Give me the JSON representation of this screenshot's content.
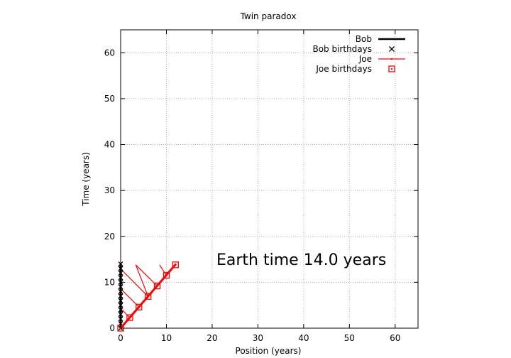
{
  "chart_data": {
    "type": "line",
    "title": "Twin paradox",
    "xlabel": "Position (years)",
    "ylabel": "Time (years)",
    "xlim": [
      0,
      65
    ],
    "ylim": [
      0,
      65
    ],
    "xticks": [
      0,
      10,
      20,
      30,
      40,
      50,
      60
    ],
    "yticks": [
      0,
      10,
      20,
      30,
      40,
      50,
      60
    ],
    "grid": true,
    "legend_position": "top-right",
    "annotation": "Earth time 14.0 years",
    "series": [
      {
        "name": "Bob",
        "color": "#000000",
        "style": "thick-line",
        "x": [
          0,
          0
        ],
        "y": [
          0,
          14
        ]
      },
      {
        "name": "Bob birthdays",
        "color": "#000000",
        "style": "cross-markers",
        "x": [
          0,
          0,
          0,
          0,
          0,
          0,
          0,
          0,
          0,
          0,
          0,
          0,
          0,
          0,
          0
        ],
        "y": [
          0,
          1,
          2,
          3,
          4,
          5,
          6,
          7,
          8,
          9,
          10,
          11,
          12,
          13,
          14
        ]
      },
      {
        "name": "Joe",
        "color": "#ff0000",
        "style": "thick-line",
        "x": [
          0,
          12.1
        ],
        "y": [
          0,
          14
        ]
      },
      {
        "name": "Joe birthdays",
        "color": "#ff0000",
        "style": "square-markers",
        "x": [
          0,
          2,
          4,
          6,
          8,
          10,
          12
        ],
        "y": [
          0,
          2.3,
          4.6,
          6.9,
          9.2,
          11.5,
          13.8
        ]
      }
    ],
    "joe_light_lines": [
      {
        "x": [
          2,
          0
        ],
        "y": [
          2.3,
          4.3
        ]
      },
      {
        "x": [
          4,
          0
        ],
        "y": [
          4.6,
          8.6
        ]
      },
      {
        "x": [
          6,
          0
        ],
        "y": [
          6.9,
          12.9
        ]
      },
      {
        "x": [
          6,
          3.3
        ],
        "y": [
          6.9,
          13.8
        ]
      },
      {
        "x": [
          8,
          3.3
        ],
        "y": [
          9.2,
          13.8
        ]
      },
      {
        "x": [
          10,
          8.5
        ],
        "y": [
          11.5,
          13.8
        ]
      }
    ]
  }
}
